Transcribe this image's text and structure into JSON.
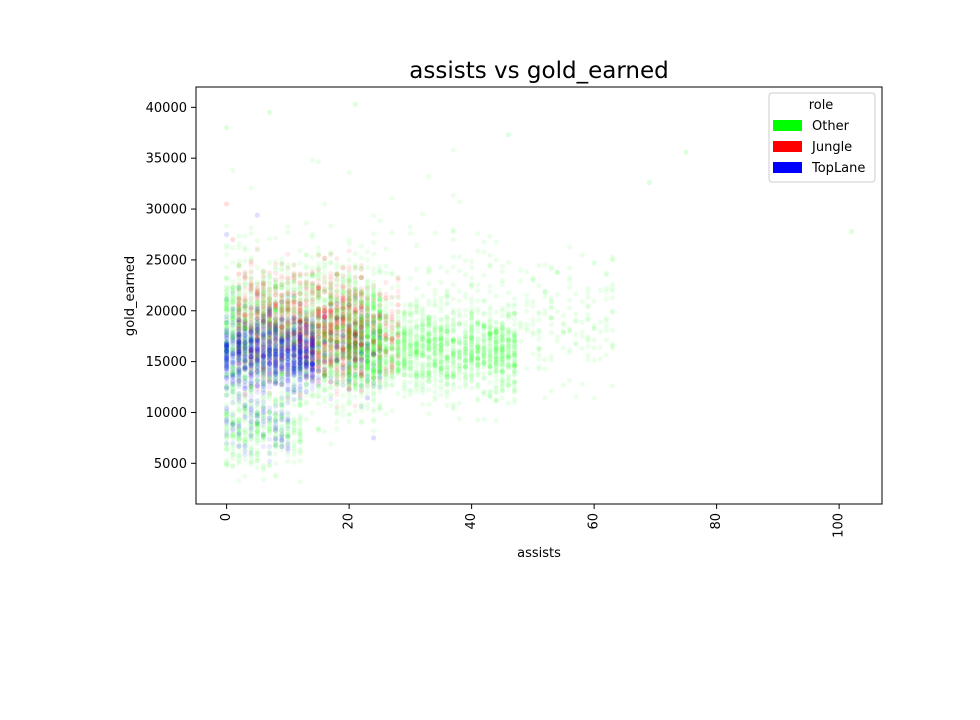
{
  "chart_data": {
    "type": "scatter",
    "title": "assists vs gold_earned",
    "xlabel": "assists",
    "ylabel": "gold_earned",
    "xlim": [
      -5,
      107
    ],
    "ylim": [
      1000,
      42000
    ],
    "xticks": [
      0,
      20,
      40,
      60,
      80,
      100
    ],
    "yticks": [
      5000,
      10000,
      15000,
      20000,
      25000,
      30000,
      35000,
      40000
    ],
    "grid": false,
    "legend": {
      "title": "role",
      "placement": "top-right"
    },
    "point_alpha": 0.08,
    "series": [
      {
        "name": "Other",
        "color": "#00ff00",
        "clusters": [
          {
            "x_range": [
              0,
              25
            ],
            "x_step": 1,
            "y_mean": 17500,
            "y_sd": 3200,
            "n": 2200
          },
          {
            "x_range": [
              0,
              12
            ],
            "x_step": 1,
            "y_mean": 8500,
            "y_sd": 2000,
            "n": 350
          },
          {
            "x_range": [
              20,
              47
            ],
            "x_step": 1,
            "y_mean": 16000,
            "y_sd": 2200,
            "n": 1500
          },
          {
            "x_range": [
              40,
              63
            ],
            "x_step": 1,
            "y_mean": 18500,
            "y_sd": 3000,
            "n": 220
          },
          {
            "x_range": [
              0,
              45
            ],
            "x_step": 1,
            "y_mean": 22000,
            "y_sd": 5000,
            "n": 220
          }
        ],
        "points": [
          {
            "x": 102,
            "y": 27800
          },
          {
            "x": 75,
            "y": 35600
          },
          {
            "x": 69,
            "y": 32600
          },
          {
            "x": 46,
            "y": 37300
          },
          {
            "x": 21,
            "y": 40300
          },
          {
            "x": 7,
            "y": 39500
          },
          {
            "x": 0,
            "y": 38000
          },
          {
            "x": 63,
            "y": 25000
          },
          {
            "x": 60,
            "y": 24700
          },
          {
            "x": 54,
            "y": 23800
          },
          {
            "x": 52,
            "y": 21900
          },
          {
            "x": 50,
            "y": 23000
          }
        ]
      },
      {
        "name": "Jungle",
        "color": "#ff0000",
        "clusters": [
          {
            "x_range": [
              2,
              22
            ],
            "x_step": 1,
            "y_mean": 18500,
            "y_sd": 2700,
            "n": 1000
          },
          {
            "x_range": [
              12,
              28
            ],
            "x_step": 1,
            "y_mean": 17500,
            "y_sd": 2200,
            "n": 400
          }
        ],
        "points": [
          {
            "x": 0,
            "y": 30500
          },
          {
            "x": 1,
            "y": 27000
          },
          {
            "x": 4,
            "y": 24800
          }
        ]
      },
      {
        "name": "TopLane",
        "color": "#0000ff",
        "clusters": [
          {
            "x_range": [
              0,
              14
            ],
            "x_step": 1,
            "y_mean": 15800,
            "y_sd": 1800,
            "n": 1100
          },
          {
            "x_range": [
              0,
              10
            ],
            "x_step": 1,
            "y_mean": 9000,
            "y_sd": 1600,
            "n": 120
          },
          {
            "x_range": [
              10,
              25
            ],
            "x_step": 1,
            "y_mean": 16000,
            "y_sd": 2000,
            "n": 200
          }
        ],
        "points": [
          {
            "x": 0,
            "y": 27500
          },
          {
            "x": 5,
            "y": 29400
          },
          {
            "x": 24,
            "y": 7500
          }
        ]
      }
    ]
  }
}
